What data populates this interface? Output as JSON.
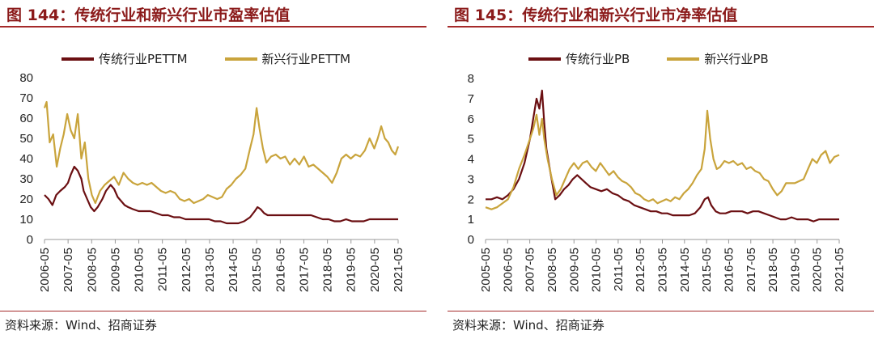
{
  "colors": {
    "traditional": "#6b0f12",
    "emerging": "#c9a43c",
    "title": "#8b1a1a"
  },
  "chart_data": [
    {
      "type": "line",
      "title": "图 144：传统行业和新兴行业市盈率估值",
      "source": "资料来源：Wind、招商证券",
      "xlabels": [
        "2006-05",
        "2007-05",
        "2008-05",
        "2009-05",
        "2010-05",
        "2011-05",
        "2012-05",
        "2013-05",
        "2014-05",
        "2015-05",
        "2016-05",
        "2017-05",
        "2018-05",
        "2019-05",
        "2020-05",
        "2021-05"
      ],
      "xrange": [
        2006.33,
        2021.42
      ],
      "ylim": [
        0,
        80
      ],
      "yticks": [
        "0",
        "10",
        "20",
        "30",
        "40",
        "50",
        "60",
        "70",
        "80"
      ],
      "legend_position": "top",
      "series": [
        {
          "name": "传统行业PETTM",
          "color": "#6b0f12",
          "x": [
            2006.33,
            2006.5,
            2006.67,
            2006.83,
            2007.0,
            2007.2,
            2007.33,
            2007.45,
            2007.6,
            2007.75,
            2007.9,
            2008.0,
            2008.15,
            2008.3,
            2008.45,
            2008.6,
            2008.8,
            2008.95,
            2009.15,
            2009.3,
            2009.45,
            2009.6,
            2009.75,
            2009.9,
            2010.1,
            2010.35,
            2010.6,
            2010.85,
            2011.1,
            2011.35,
            2011.6,
            2011.85,
            2012.1,
            2012.35,
            2012.6,
            2012.85,
            2013.1,
            2013.35,
            2013.6,
            2013.85,
            2014.1,
            2014.35,
            2014.6,
            2014.85,
            2015.1,
            2015.3,
            2015.42,
            2015.55,
            2015.7,
            2015.85,
            2016.0,
            2016.2,
            2016.45,
            2016.7,
            2016.95,
            2017.2,
            2017.45,
            2017.7,
            2017.95,
            2018.2,
            2018.45,
            2018.7,
            2018.95,
            2019.2,
            2019.45,
            2019.7,
            2019.95,
            2020.2,
            2020.45,
            2020.7,
            2020.95,
            2021.2,
            2021.42
          ],
          "values": [
            22,
            20,
            17,
            22,
            24,
            26,
            28,
            32,
            36,
            34,
            30,
            24,
            20,
            16,
            14,
            16,
            20,
            24,
            27,
            25,
            21,
            19,
            17,
            16,
            15,
            14,
            14,
            14,
            13,
            12,
            12,
            11,
            11,
            10,
            10,
            10,
            10,
            10,
            9,
            9,
            8,
            8,
            8,
            9,
            11,
            14,
            16,
            15,
            13,
            12,
            12,
            12,
            12,
            12,
            12,
            12,
            12,
            12,
            11,
            10,
            10,
            9,
            9,
            10,
            9,
            9,
            9,
            10,
            10,
            10,
            10,
            10,
            10
          ]
        },
        {
          "name": "新兴行业PETTM",
          "color": "#c9a43c",
          "x": [
            2006.33,
            2006.42,
            2006.55,
            2006.7,
            2006.85,
            2007.0,
            2007.15,
            2007.3,
            2007.45,
            2007.6,
            2007.75,
            2007.9,
            2008.05,
            2008.2,
            2008.35,
            2008.5,
            2008.7,
            2008.9,
            2009.1,
            2009.3,
            2009.5,
            2009.7,
            2009.9,
            2010.1,
            2010.3,
            2010.5,
            2010.7,
            2010.9,
            2011.1,
            2011.3,
            2011.5,
            2011.7,
            2011.9,
            2012.1,
            2012.3,
            2012.5,
            2012.7,
            2012.9,
            2013.1,
            2013.3,
            2013.5,
            2013.7,
            2013.9,
            2014.1,
            2014.3,
            2014.5,
            2014.7,
            2014.9,
            2015.1,
            2015.25,
            2015.38,
            2015.5,
            2015.65,
            2015.8,
            2016.0,
            2016.2,
            2016.4,
            2016.6,
            2016.8,
            2017.0,
            2017.2,
            2017.4,
            2017.6,
            2017.8,
            2018.0,
            2018.2,
            2018.4,
            2018.6,
            2018.8,
            2019.0,
            2019.2,
            2019.4,
            2019.6,
            2019.8,
            2020.0,
            2020.2,
            2020.4,
            2020.55,
            2020.7,
            2020.85,
            2021.0,
            2021.15,
            2021.3,
            2021.42
          ],
          "values": [
            65,
            68,
            48,
            52,
            36,
            45,
            52,
            62,
            54,
            50,
            62,
            40,
            48,
            30,
            22,
            18,
            24,
            27,
            29,
            31,
            27,
            33,
            30,
            28,
            27,
            28,
            27,
            28,
            26,
            24,
            23,
            24,
            23,
            20,
            19,
            20,
            18,
            19,
            20,
            22,
            21,
            20,
            21,
            25,
            27,
            30,
            32,
            35,
            45,
            52,
            65,
            55,
            45,
            38,
            41,
            42,
            40,
            41,
            37,
            40,
            37,
            41,
            36,
            37,
            35,
            33,
            31,
            28,
            33,
            40,
            42,
            40,
            42,
            41,
            44,
            50,
            45,
            50,
            56,
            50,
            48,
            44,
            42,
            46
          ]
        }
      ]
    },
    {
      "type": "line",
      "title": "图 145：传统行业和新兴行业市净率估值",
      "source": "资料来源：Wind、招商证券",
      "xlabels": [
        "2005-05",
        "2006-05",
        "2007-05",
        "2008-05",
        "2009-05",
        "2010-05",
        "2011-05",
        "2012-05",
        "2013-05",
        "2014-05",
        "2015-05",
        "2016-05",
        "2017-05",
        "2018-05",
        "2019-05",
        "2020-05",
        "2021-05"
      ],
      "xrange": [
        2005.33,
        2021.42
      ],
      "ylim": [
        0,
        8
      ],
      "yticks": [
        "0",
        "1",
        "2",
        "3",
        "4",
        "5",
        "6",
        "7",
        "8"
      ],
      "legend_position": "top",
      "series": [
        {
          "name": "传统行业PB",
          "color": "#6b0f12",
          "x": [
            2005.33,
            2005.6,
            2005.85,
            2006.1,
            2006.35,
            2006.6,
            2006.85,
            2007.1,
            2007.35,
            2007.5,
            2007.65,
            2007.78,
            2007.9,
            2008.0,
            2008.1,
            2008.3,
            2008.5,
            2008.7,
            2008.9,
            2009.1,
            2009.3,
            2009.5,
            2009.7,
            2009.9,
            2010.1,
            2010.35,
            2010.6,
            2010.85,
            2011.1,
            2011.35,
            2011.6,
            2011.85,
            2012.1,
            2012.35,
            2012.6,
            2012.85,
            2013.1,
            2013.35,
            2013.6,
            2013.85,
            2014.1,
            2014.35,
            2014.6,
            2014.85,
            2015.1,
            2015.3,
            2015.45,
            2015.6,
            2015.8,
            2016.0,
            2016.25,
            2016.5,
            2016.75,
            2017.0,
            2017.25,
            2017.5,
            2017.75,
            2018.0,
            2018.25,
            2018.5,
            2018.75,
            2019.0,
            2019.25,
            2019.5,
            2019.75,
            2020.0,
            2020.25,
            2020.5,
            2020.75,
            2021.0,
            2021.2,
            2021.42
          ],
          "values": [
            2.0,
            2.0,
            2.1,
            2.0,
            2.2,
            2.5,
            3.0,
            3.8,
            5.0,
            6.0,
            7.0,
            6.5,
            7.4,
            5.8,
            4.5,
            3.2,
            2.0,
            2.2,
            2.5,
            2.7,
            3.0,
            3.2,
            3.0,
            2.8,
            2.6,
            2.5,
            2.4,
            2.5,
            2.3,
            2.2,
            2.0,
            1.9,
            1.7,
            1.6,
            1.5,
            1.4,
            1.4,
            1.3,
            1.3,
            1.2,
            1.2,
            1.2,
            1.2,
            1.3,
            1.6,
            2.0,
            2.1,
            1.7,
            1.4,
            1.3,
            1.3,
            1.4,
            1.4,
            1.4,
            1.3,
            1.4,
            1.4,
            1.3,
            1.2,
            1.1,
            1.0,
            1.0,
            1.1,
            1.0,
            1.0,
            1.0,
            0.9,
            1.0,
            1.0,
            1.0,
            1.0,
            1.0
          ]
        },
        {
          "name": "新兴行业PB",
          "color": "#c9a43c",
          "x": [
            2005.33,
            2005.6,
            2005.85,
            2006.1,
            2006.35,
            2006.6,
            2006.85,
            2007.1,
            2007.35,
            2007.5,
            2007.65,
            2007.78,
            2007.9,
            2008.0,
            2008.15,
            2008.35,
            2008.55,
            2008.75,
            2008.95,
            2009.15,
            2009.35,
            2009.55,
            2009.75,
            2009.95,
            2010.15,
            2010.35,
            2010.55,
            2010.75,
            2010.95,
            2011.15,
            2011.35,
            2011.55,
            2011.75,
            2011.95,
            2012.15,
            2012.35,
            2012.55,
            2012.75,
            2012.95,
            2013.15,
            2013.35,
            2013.55,
            2013.75,
            2013.95,
            2014.15,
            2014.35,
            2014.55,
            2014.75,
            2014.95,
            2015.15,
            2015.3,
            2015.42,
            2015.55,
            2015.7,
            2015.85,
            2016.0,
            2016.2,
            2016.4,
            2016.6,
            2016.8,
            2017.0,
            2017.2,
            2017.4,
            2017.6,
            2017.8,
            2018.0,
            2018.2,
            2018.4,
            2018.6,
            2018.8,
            2019.0,
            2019.2,
            2019.4,
            2019.6,
            2019.8,
            2020.0,
            2020.2,
            2020.4,
            2020.6,
            2020.8,
            2021.0,
            2021.2,
            2021.42
          ],
          "values": [
            1.6,
            1.5,
            1.6,
            1.8,
            2.0,
            2.6,
            3.5,
            4.2,
            5.0,
            5.5,
            6.2,
            5.2,
            6.0,
            5.0,
            4.0,
            3.0,
            2.2,
            2.5,
            3.0,
            3.5,
            3.8,
            3.5,
            3.8,
            3.9,
            3.6,
            3.4,
            3.8,
            3.5,
            3.2,
            3.4,
            3.1,
            2.9,
            2.8,
            2.6,
            2.3,
            2.2,
            2.0,
            1.9,
            2.0,
            1.8,
            1.9,
            2.0,
            1.9,
            2.1,
            2.0,
            2.3,
            2.5,
            2.8,
            3.2,
            3.5,
            4.5,
            6.4,
            5.0,
            4.0,
            3.5,
            3.6,
            3.9,
            3.8,
            3.9,
            3.7,
            3.8,
            3.5,
            3.6,
            3.4,
            3.3,
            3.0,
            2.9,
            2.5,
            2.2,
            2.4,
            2.8,
            2.8,
            2.8,
            2.9,
            3.0,
            3.5,
            4.0,
            3.8,
            4.2,
            4.4,
            3.8,
            4.1,
            4.2
          ]
        }
      ]
    }
  ]
}
